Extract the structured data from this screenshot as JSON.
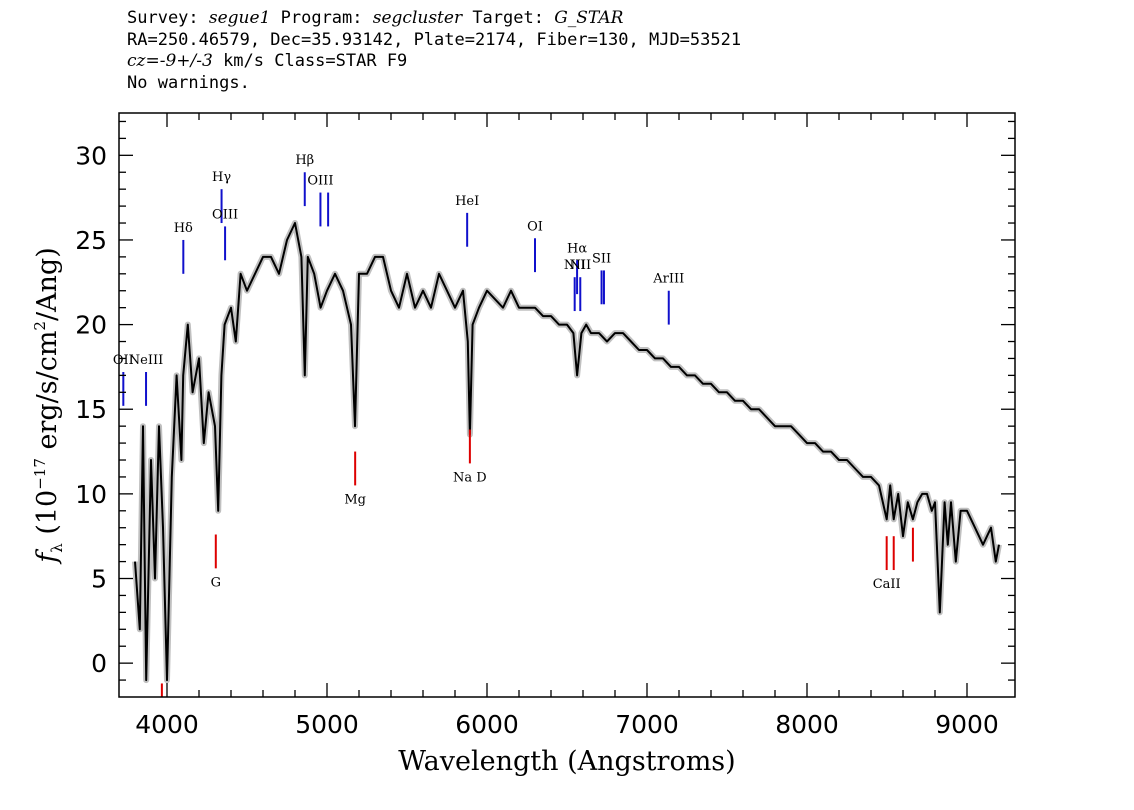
{
  "header": {
    "survey_label": "Survey: ",
    "survey": "segue1",
    "program_label": " Program: ",
    "program": "segcluster",
    "target_label": " Target: ",
    "target": "G_STAR",
    "line2": "RA=250.46579, Dec=35.93142, Plate=2174, Fiber=130, MJD=53521",
    "cz_label": "cz=",
    "cz_value": "-9+/-3",
    "cz_rest": " km/s Class=STAR F9",
    "line4": "No warnings."
  },
  "chart_data": {
    "type": "line",
    "xlabel": "Wavelength (Angstroms)",
    "ylabel": "f_λ (10^-17 erg/s/cm^2/Ang)",
    "xlim": [
      3700,
      9300
    ],
    "ylim": [
      -2,
      32.5
    ],
    "x_ticks": [
      4000,
      5000,
      6000,
      7000,
      8000,
      9000
    ],
    "y_ticks": [
      0,
      5,
      10,
      15,
      20,
      25,
      30
    ],
    "colors": {
      "flux": "#000000",
      "error_band": "#c0c0c0",
      "emission": "#1010cc",
      "absorption": "#dd0000"
    },
    "series": [
      {
        "name": "flux",
        "x": [
          3800,
          3830,
          3850,
          3870,
          3900,
          3925,
          3950,
          3975,
          4000,
          4030,
          4060,
          4090,
          4101,
          4130,
          4160,
          4200,
          4230,
          4260,
          4300,
          4320,
          4340,
          4360,
          4400,
          4430,
          4460,
          4500,
          4550,
          4600,
          4650,
          4700,
          4750,
          4800,
          4840,
          4861,
          4880,
          4920,
          4960,
          5000,
          5050,
          5100,
          5150,
          5175,
          5200,
          5250,
          5300,
          5350,
          5400,
          5450,
          5500,
          5550,
          5600,
          5650,
          5700,
          5750,
          5800,
          5850,
          5880,
          5893,
          5910,
          5950,
          6000,
          6050,
          6100,
          6150,
          6200,
          6250,
          6300,
          6350,
          6400,
          6450,
          6500,
          6540,
          6563,
          6590,
          6620,
          6650,
          6700,
          6750,
          6800,
          6850,
          6900,
          6950,
          7000,
          7050,
          7100,
          7150,
          7200,
          7250,
          7300,
          7350,
          7400,
          7450,
          7500,
          7550,
          7600,
          7650,
          7700,
          7750,
          7800,
          7850,
          7900,
          7950,
          8000,
          8050,
          8100,
          8150,
          8200,
          8250,
          8300,
          8350,
          8400,
          8450,
          8498,
          8520,
          8542,
          8570,
          8600,
          8630,
          8662,
          8690,
          8720,
          8750,
          8780,
          8800,
          8830,
          8860,
          8880,
          8900,
          8930,
          8960,
          9000,
          9050,
          9100,
          9150,
          9180,
          9200
        ],
        "y": [
          6,
          2,
          14,
          -1,
          12,
          5,
          14,
          8,
          -1,
          11,
          17,
          12,
          17,
          20,
          16,
          18,
          13,
          16,
          14,
          9,
          17,
          20,
          21,
          19,
          23,
          22,
          23,
          24,
          24,
          23,
          25,
          26,
          24,
          17,
          24,
          23,
          21,
          22,
          23,
          22,
          20,
          14,
          23,
          23,
          24,
          24,
          22,
          21,
          23,
          21,
          22,
          21,
          23,
          22,
          21,
          22,
          19,
          13.5,
          20,
          21,
          22,
          21.5,
          21,
          22,
          21,
          21,
          21,
          20.5,
          20.5,
          20,
          20,
          19.5,
          17,
          19.5,
          20,
          19.5,
          19.5,
          19,
          19.5,
          19.5,
          19,
          18.5,
          18.5,
          18,
          18,
          17.5,
          17.5,
          17,
          17,
          16.5,
          16.5,
          16,
          16,
          15.5,
          15.5,
          15,
          15,
          14.5,
          14,
          14,
          14,
          13.5,
          13,
          13,
          12.5,
          12.5,
          12,
          12,
          11.5,
          11,
          11,
          10.5,
          8.5,
          10.5,
          8.5,
          10,
          7.5,
          9.5,
          8.5,
          9.5,
          10,
          10,
          9,
          9.5,
          3,
          9.5,
          7,
          9.5,
          6,
          9,
          9,
          8,
          7,
          8,
          6,
          7
        ]
      }
    ],
    "line_markers": [
      {
        "label": "OII",
        "wavelength": 3727,
        "y_low": 15.2,
        "y_high": 17.2,
        "type": "emission"
      },
      {
        "label": "NeIII",
        "wavelength": 3869,
        "y_low": 15.2,
        "y_high": 17.2,
        "type": "emission"
      },
      {
        "label": "Hδ",
        "wavelength": 4102,
        "y_low": 23.0,
        "y_high": 25.0,
        "type": "emission"
      },
      {
        "label": "Hγ",
        "wavelength": 4341,
        "y_low": 26.0,
        "y_high": 28.0,
        "type": "emission"
      },
      {
        "label": "OIII",
        "wavelength": 4363,
        "y_low": 23.8,
        "y_high": 25.8,
        "type": "emission"
      },
      {
        "label": "Hβ",
        "wavelength": 4861,
        "y_low": 27.0,
        "y_high": 29.0,
        "type": "emission"
      },
      {
        "label": "OIII",
        "wavelength": 4959,
        "y_low": 25.8,
        "y_high": 27.8,
        "type": "emission"
      },
      {
        "label": "",
        "wavelength": 5007,
        "y_low": 25.8,
        "y_high": 27.8,
        "type": "emission"
      },
      {
        "label": "HeI",
        "wavelength": 5876,
        "y_low": 24.6,
        "y_high": 26.6,
        "type": "emission"
      },
      {
        "label": "OI",
        "wavelength": 6300,
        "y_low": 23.1,
        "y_high": 25.1,
        "type": "emission"
      },
      {
        "label": "NII",
        "wavelength": 6548,
        "y_low": 20.8,
        "y_high": 22.8,
        "type": "emission"
      },
      {
        "label": "Hα",
        "wavelength": 6563,
        "y_low": 21.8,
        "y_high": 23.8,
        "type": "emission"
      },
      {
        "label": "NII",
        "wavelength": 6583,
        "y_low": 20.8,
        "y_high": 22.8,
        "type": "emission"
      },
      {
        "label": "SII",
        "wavelength": 6716,
        "y_low": 21.2,
        "y_high": 23.2,
        "type": "emission"
      },
      {
        "label": "",
        "wavelength": 6731,
        "y_low": 21.2,
        "y_high": 23.2,
        "type": "emission"
      },
      {
        "label": "ArIII",
        "wavelength": 7136,
        "y_low": 20.0,
        "y_high": 22.0,
        "type": "emission"
      },
      {
        "label": "G",
        "wavelength": 4305,
        "y_low": 5.6,
        "y_high": 7.6,
        "type": "absorption"
      },
      {
        "label": "Mg",
        "wavelength": 5176,
        "y_low": 10.5,
        "y_high": 12.5,
        "type": "absorption"
      },
      {
        "label": "Na D",
        "wavelength": 5893,
        "y_low": 11.8,
        "y_high": 13.8,
        "type": "absorption"
      },
      {
        "label": "CaII",
        "wavelength": 8498,
        "y_low": 5.5,
        "y_high": 7.5,
        "type": "absorption"
      },
      {
        "label": "",
        "wavelength": 8542,
        "y_low": 5.5,
        "y_high": 7.5,
        "type": "absorption"
      },
      {
        "label": "",
        "wavelength": 8662,
        "y_low": 6.0,
        "y_high": 8.0,
        "type": "absorption"
      },
      {
        "label": "",
        "wavelength": 3968,
        "y_low": -2,
        "y_high": -1.2,
        "type": "absorption"
      }
    ]
  }
}
